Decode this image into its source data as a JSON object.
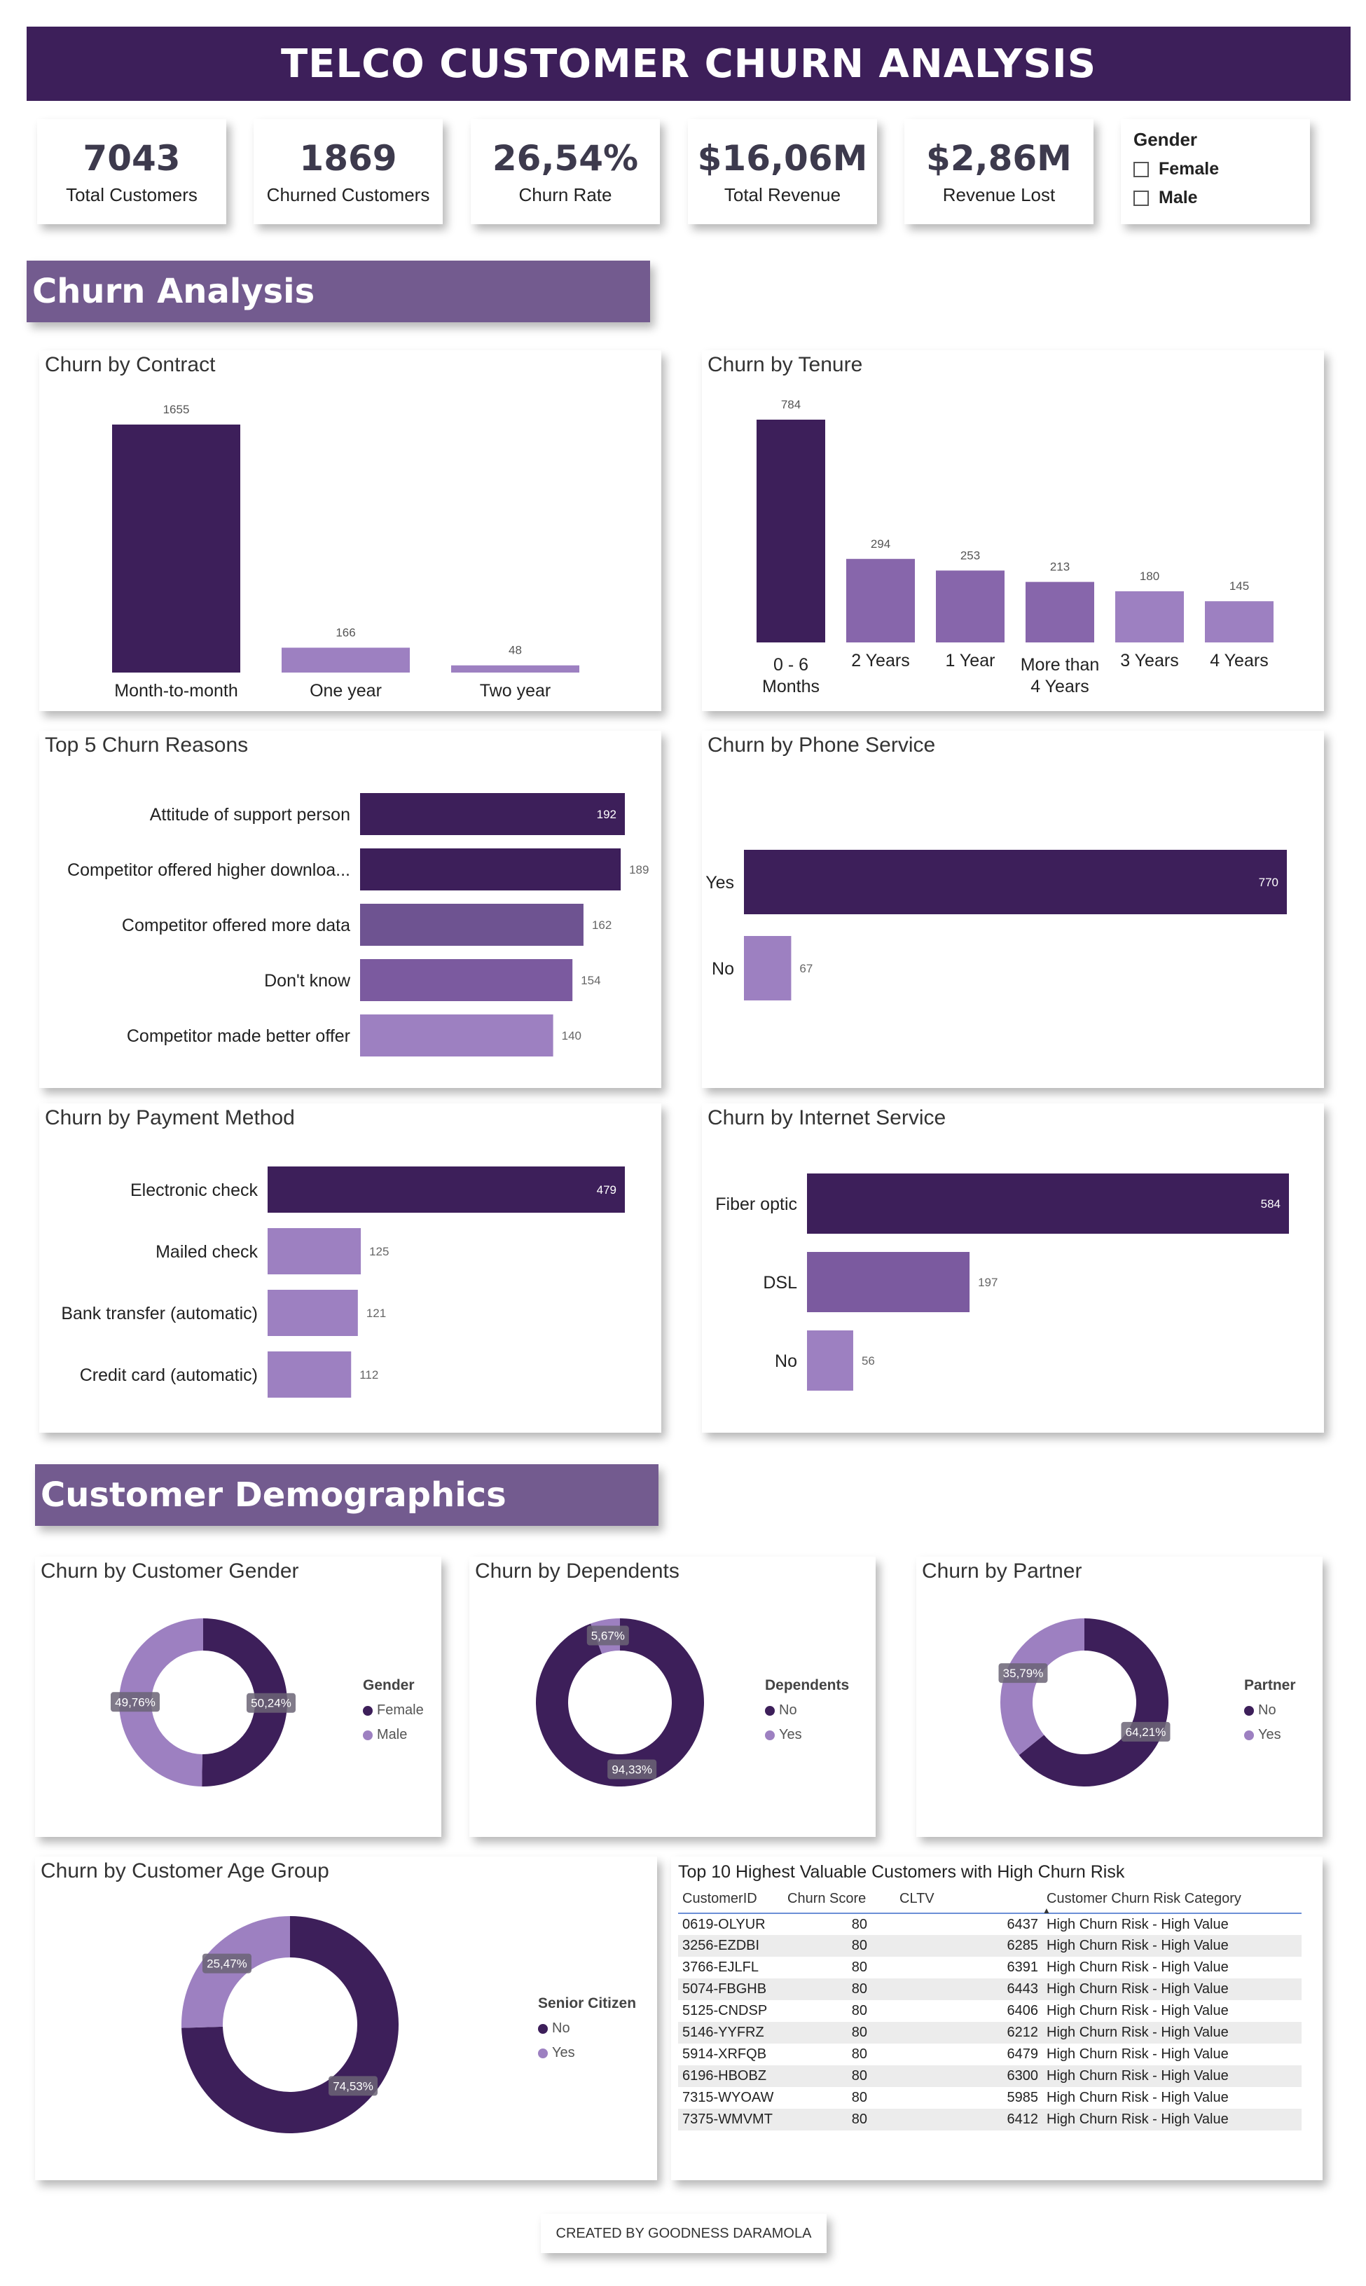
{
  "title": "TELCO CUSTOMER CHURN ANALYSIS",
  "kpis": [
    {
      "value": "7043",
      "label": "Total Customers"
    },
    {
      "value": "1869",
      "label": "Churned Customers"
    },
    {
      "value": "26,54%",
      "label": "Churn Rate"
    },
    {
      "value": "$16,06M",
      "label": "Total Revenue"
    },
    {
      "value": "$2,86M",
      "label": "Revenue Lost"
    }
  ],
  "gender_slicer": {
    "header": "Gender",
    "options": [
      "Female",
      "Male"
    ]
  },
  "sections": {
    "churn": "Churn Analysis",
    "demographics": "Customer Demographics"
  },
  "colors": {
    "dark": "#3d1f5a",
    "mid": "#7b5a9f",
    "light": "#9d80c1",
    "header": "#3d1f5a",
    "section": "#735b8f"
  },
  "chart_data": [
    {
      "id": "contract",
      "type": "bar",
      "title": "Churn by Contract",
      "categories": [
        "Month-to-month",
        "One year",
        "Two year"
      ],
      "values": [
        1655,
        166,
        48
      ],
      "colors": [
        "#3d1f5a",
        "#9d80c1",
        "#9d80c1"
      ]
    },
    {
      "id": "tenure",
      "type": "bar",
      "title": "Churn by Tenure",
      "categories": [
        "0 - 6 Months",
        "2 Years",
        "1 Year",
        "More than 4 Years",
        "3 Years",
        "4 Years"
      ],
      "values": [
        784,
        294,
        253,
        213,
        180,
        145
      ],
      "colors": [
        "#3d1f5a",
        "#8766ab",
        "#8766ab",
        "#8766ab",
        "#9d80c1",
        "#9d80c1"
      ]
    },
    {
      "id": "reasons",
      "type": "bar",
      "orientation": "horizontal",
      "title": "Top 5 Churn Reasons",
      "categories": [
        "Attitude of support person",
        "Competitor offered higher downloa...",
        "Competitor offered more data",
        "Don't know",
        "Competitor made better offer"
      ],
      "values": [
        192,
        189,
        162,
        154,
        140
      ],
      "colors": [
        "#3d1f5a",
        "#3d1f5a",
        "#6e5391",
        "#7b5a9f",
        "#9d80c1"
      ]
    },
    {
      "id": "phone",
      "type": "bar",
      "orientation": "horizontal",
      "title": "Churn by Phone Service",
      "categories": [
        "Yes",
        "No"
      ],
      "values": [
        770,
        67
      ],
      "colors": [
        "#3d1f5a",
        "#9d80c1"
      ]
    },
    {
      "id": "payment",
      "type": "bar",
      "orientation": "horizontal",
      "title": "Churn by Payment Method",
      "categories": [
        "Electronic check",
        "Mailed check",
        "Bank transfer (automatic)",
        "Credit card (automatic)"
      ],
      "values": [
        479,
        125,
        121,
        112
      ],
      "colors": [
        "#3d1f5a",
        "#9d80c1",
        "#9d80c1",
        "#9d80c1"
      ]
    },
    {
      "id": "internet",
      "type": "bar",
      "orientation": "horizontal",
      "title": "Churn by Internet Service",
      "categories": [
        "Fiber optic",
        "DSL",
        "No"
      ],
      "values": [
        584,
        197,
        56
      ],
      "colors": [
        "#3d1f5a",
        "#7b5a9f",
        "#9d80c1"
      ]
    },
    {
      "id": "gender",
      "type": "pie",
      "donut": true,
      "title": "Churn by Customer Gender",
      "legend_title": "Gender",
      "labels": [
        "Female",
        "Male"
      ],
      "values": [
        50.24,
        49.76
      ],
      "display": [
        "50,24%",
        "49,76%"
      ],
      "colors": [
        "#3d1f5a",
        "#9d80c1"
      ]
    },
    {
      "id": "dependents",
      "type": "pie",
      "donut": true,
      "title": "Churn by Dependents",
      "legend_title": "Dependents",
      "labels": [
        "No",
        "Yes"
      ],
      "values": [
        94.33,
        5.67
      ],
      "display": [
        "94,33%",
        "5,67%"
      ],
      "colors": [
        "#3d1f5a",
        "#9d80c1"
      ]
    },
    {
      "id": "partner",
      "type": "pie",
      "donut": true,
      "title": "Churn by Partner",
      "legend_title": "Partner",
      "labels": [
        "No",
        "Yes"
      ],
      "values": [
        64.21,
        35.79
      ],
      "display": [
        "64,21%",
        "35,79%"
      ],
      "colors": [
        "#3d1f5a",
        "#9d80c1"
      ]
    },
    {
      "id": "age",
      "type": "pie",
      "donut": true,
      "title": "Churn by Customer Age Group",
      "legend_title": "Senior Citizen",
      "labels": [
        "No",
        "Yes"
      ],
      "values": [
        74.53,
        25.47
      ],
      "display": [
        "74,53%",
        "25,47%"
      ],
      "colors": [
        "#3d1f5a",
        "#9d80c1"
      ]
    }
  ],
  "table": {
    "title": "Top 10 Highest Valuable Customers with High Churn Risk",
    "columns": [
      "CustomerID",
      "Churn Score",
      "CLTV",
      "Customer Churn Risk Category"
    ],
    "rows": [
      [
        "0619-OLYUR",
        "80",
        "6437",
        "High Churn Risk - High Value"
      ],
      [
        "3256-EZDBI",
        "80",
        "6285",
        "High Churn Risk - High Value"
      ],
      [
        "3766-EJLFL",
        "80",
        "6391",
        "High Churn Risk - High Value"
      ],
      [
        "5074-FBGHB",
        "80",
        "6443",
        "High Churn Risk - High Value"
      ],
      [
        "5125-CNDSP",
        "80",
        "6406",
        "High Churn Risk - High Value"
      ],
      [
        "5146-YYFRZ",
        "80",
        "6212",
        "High Churn Risk - High Value"
      ],
      [
        "5914-XRFQB",
        "80",
        "6479",
        "High Churn Risk - High Value"
      ],
      [
        "6196-HBOBZ",
        "80",
        "6300",
        "High Churn Risk - High Value"
      ],
      [
        "7315-WYOAW",
        "80",
        "5985",
        "High Churn Risk - High Value"
      ],
      [
        "7375-WMVMT",
        "80",
        "6412",
        "High Churn Risk - High Value"
      ]
    ]
  },
  "footer": "CREATED BY GOODNESS DARAMOLA"
}
